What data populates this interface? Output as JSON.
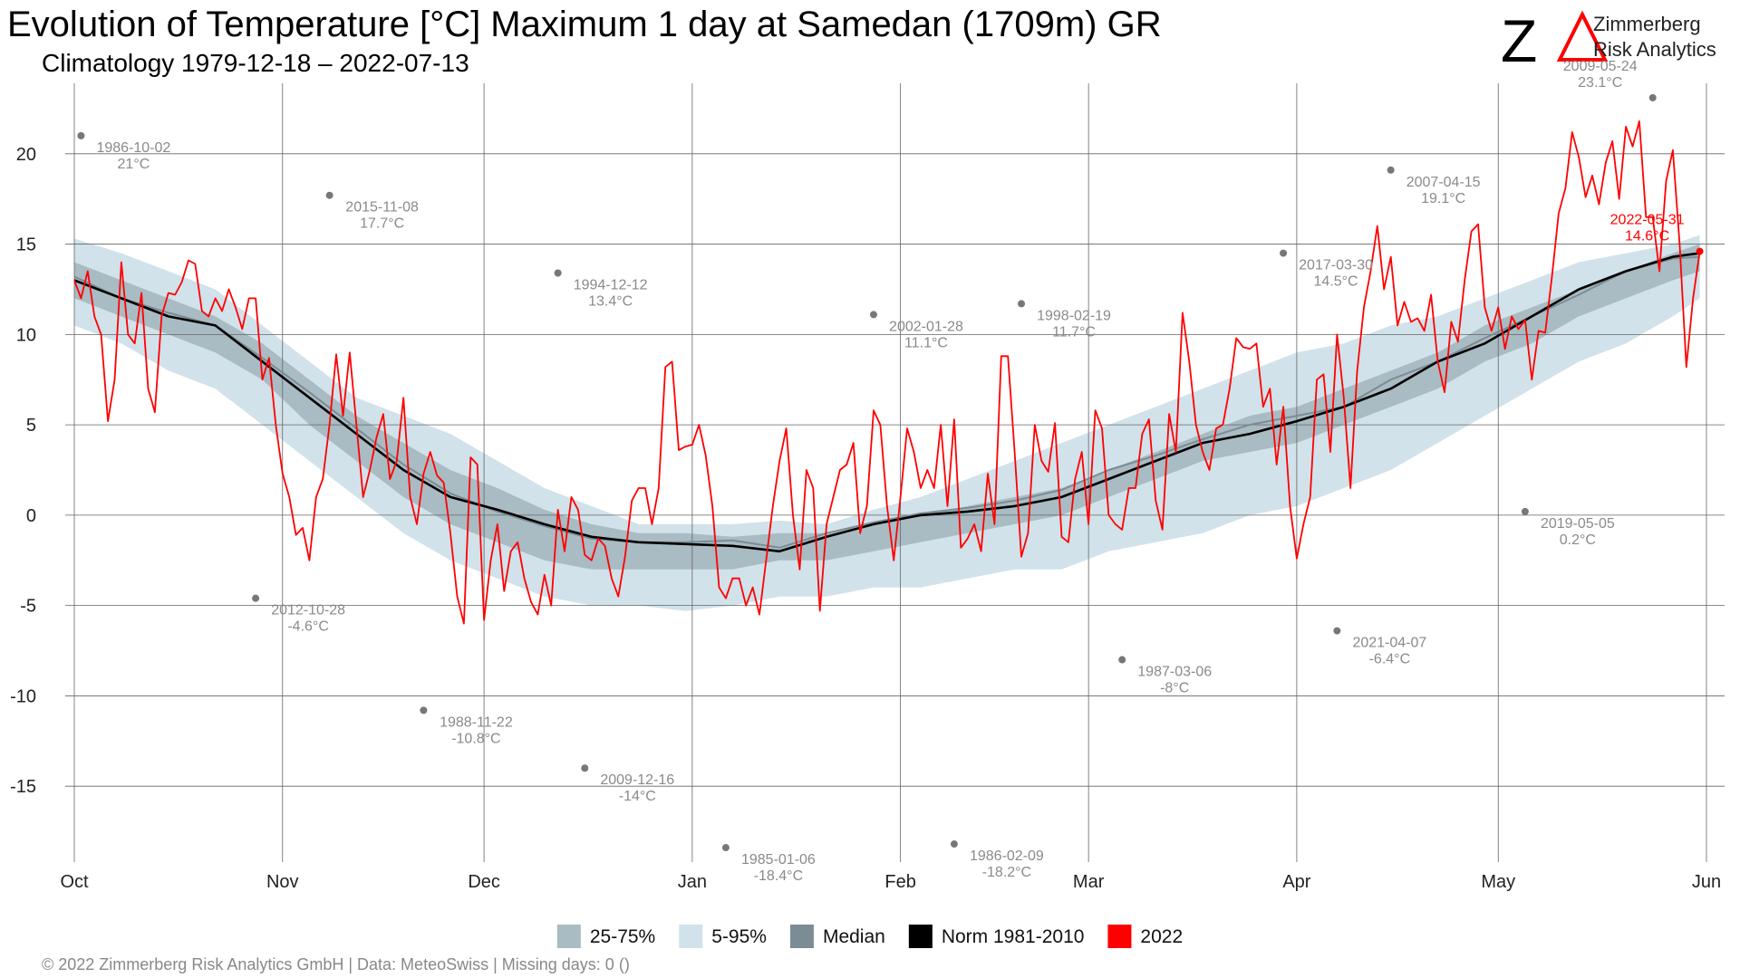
{
  "chart_data": {
    "type": "climatology",
    "title": "Evolution of Temperature [°C] Maximum 1 day at Samedan (1709m) GR",
    "subtitle": "Climatology 1979-12-18 – 2022-07-13",
    "logo": {
      "mark": "Z",
      "name": "Zimmerberg",
      "tagline": "Risk Analytics"
    },
    "footer": "©  2022 Zimmerberg Risk Analytics GmbH | Data: MeteoSwiss | Missing days: 0 ()",
    "xlim": [
      0,
      243
    ],
    "xticks": [
      {
        "value": 0,
        "label": "Oct"
      },
      {
        "value": 31,
        "label": "Nov"
      },
      {
        "value": 61,
        "label": "Dec"
      },
      {
        "value": 92,
        "label": "Jan"
      },
      {
        "value": 123,
        "label": "Feb"
      },
      {
        "value": 151,
        "label": "Mar"
      },
      {
        "value": 182,
        "label": "Apr"
      },
      {
        "value": 212,
        "label": "May"
      },
      {
        "value": 243,
        "label": "Jun"
      }
    ],
    "ylim": [
      -19.2,
      23.9
    ],
    "yticks": [
      -15,
      -10,
      -5,
      0,
      5,
      10,
      15,
      20
    ],
    "grid": true,
    "bands": [
      {
        "name": "25-75%",
        "color": "#a9bbc3",
        "x": [
          0,
          7,
          14,
          21,
          28,
          35,
          42,
          49,
          56,
          63,
          70,
          77,
          84,
          91,
          98,
          105,
          112,
          119,
          126,
          133,
          140,
          147,
          154,
          161,
          168,
          175,
          182,
          189,
          196,
          203,
          210,
          217,
          224,
          231,
          238,
          242
        ],
        "low": [
          12,
          11,
          10,
          9,
          7.5,
          5,
          3,
          1,
          -0.5,
          -1.5,
          -2.5,
          -3,
          -3,
          -3,
          -3,
          -2.5,
          -2.5,
          -2,
          -1.5,
          -1,
          -0.5,
          0,
          1,
          2,
          3,
          3.5,
          4,
          5,
          6,
          7,
          8.5,
          9.5,
          11,
          12,
          13,
          13.5
        ],
        "high": [
          14,
          13,
          12,
          11,
          9.5,
          7.5,
          5.5,
          4,
          2.5,
          1.5,
          0.3,
          -0.5,
          -1,
          -1,
          -1.2,
          -1,
          -1,
          -0.5,
          0,
          0.5,
          1,
          1.5,
          2.5,
          3.5,
          4.5,
          5.5,
          6,
          7,
          8,
          9,
          10.5,
          11.5,
          12.5,
          13.5,
          14.5,
          15
        ]
      },
      {
        "name": "5-95%",
        "color": "#d1e2ea",
        "x": [
          0,
          7,
          14,
          21,
          28,
          35,
          42,
          49,
          56,
          63,
          70,
          77,
          84,
          91,
          98,
          105,
          112,
          119,
          126,
          133,
          140,
          147,
          154,
          161,
          168,
          175,
          182,
          189,
          196,
          203,
          210,
          217,
          224,
          231,
          238,
          242
        ],
        "low": [
          10.5,
          9.5,
          8,
          7,
          5,
          3,
          1,
          -1,
          -2.5,
          -3.5,
          -4.5,
          -5,
          -5,
          -5.3,
          -5,
          -4.5,
          -4.5,
          -4,
          -4,
          -3.5,
          -3,
          -3,
          -2,
          -1.5,
          -1,
          0,
          0.5,
          1.5,
          2.5,
          4,
          5.5,
          7,
          8.5,
          9.5,
          11,
          12
        ],
        "high": [
          15.3,
          14.5,
          13.5,
          12.5,
          10.5,
          8.5,
          6.5,
          5.5,
          4.5,
          3,
          1.5,
          0.5,
          -0.5,
          -0.5,
          -0.5,
          -0.3,
          -0.5,
          0.3,
          1,
          2,
          3,
          4,
          5,
          6,
          7,
          8,
          9,
          9.5,
          10.5,
          11,
          12,
          13,
          14,
          14.5,
          15,
          15.5
        ]
      }
    ],
    "series": [
      {
        "name": "Median",
        "color": "#7c8c94",
        "x": [
          0,
          7,
          14,
          21,
          28,
          35,
          42,
          49,
          56,
          63,
          70,
          77,
          84,
          91,
          98,
          105,
          112,
          119,
          126,
          133,
          140,
          147,
          154,
          161,
          168,
          175,
          182,
          189,
          196,
          203,
          210,
          217,
          224,
          231,
          238,
          242
        ],
        "values": [
          13.2,
          12,
          11.2,
          10.5,
          8.7,
          6.8,
          4.8,
          2.8,
          1.2,
          0.2,
          -0.6,
          -1.3,
          -1.5,
          -1.5,
          -1.4,
          -1.8,
          -1,
          -0.4,
          0.1,
          0.4,
          0.8,
          1.4,
          2.5,
          3.3,
          4.2,
          5,
          5.5,
          6,
          7.5,
          8.5,
          9.8,
          11,
          12.2,
          13.5,
          14.2,
          14.3
        ]
      },
      {
        "name": "Norm 1981-2010",
        "color": "#000000",
        "x": [
          0,
          7,
          14,
          21,
          28,
          35,
          42,
          49,
          56,
          63,
          70,
          77,
          84,
          91,
          98,
          105,
          112,
          119,
          126,
          133,
          140,
          147,
          154,
          161,
          168,
          175,
          182,
          189,
          196,
          203,
          210,
          217,
          224,
          231,
          238,
          242
        ],
        "values": [
          13,
          12,
          11,
          10.5,
          8.5,
          6.5,
          4.5,
          2.5,
          1,
          0.3,
          -0.5,
          -1.2,
          -1.5,
          -1.6,
          -1.7,
          -2,
          -1.2,
          -0.5,
          0,
          0.2,
          0.5,
          1,
          2,
          3,
          4,
          4.5,
          5.2,
          6,
          7,
          8.5,
          9.5,
          11,
          12.5,
          13.5,
          14.3,
          14.5
        ]
      },
      {
        "name": "2022",
        "color": "#ff0000",
        "values": [
          13,
          12,
          13.5,
          11,
          10,
          5.2,
          7.5,
          14,
          10,
          9.5,
          12.3,
          7,
          5.7,
          11,
          12.3,
          12.2,
          12.9,
          14.1,
          13.9,
          11.3,
          11,
          12,
          11.3,
          12.5,
          11.5,
          10.3,
          12,
          12,
          7.5,
          8.7,
          5,
          2.3,
          1,
          -1.1,
          -0.7,
          -2.5,
          1,
          2,
          5,
          8.9,
          5.5,
          9,
          5,
          1,
          2.5,
          4.3,
          5.6,
          2,
          3,
          6.5,
          1,
          -0.5,
          2.3,
          3.5,
          2.2,
          1.8,
          -1,
          -4.5,
          -6,
          3.2,
          2.8,
          -5.8,
          -2.5,
          -0.5,
          -4.2,
          -2,
          -1.5,
          -3.5,
          -4.8,
          -5.5,
          -3.3,
          -5,
          0.3,
          -2,
          1,
          0.3,
          -2.2,
          -2.5,
          -1.3,
          -1.7,
          -3.5,
          -4.5,
          -2.3,
          0.8,
          1.5,
          1.5,
          -0.5,
          1.5,
          8.2,
          8.5,
          3.6,
          3.8,
          3.9,
          5,
          3.3,
          0.5,
          -4,
          -4.6,
          -3.5,
          -3.5,
          -5,
          -4,
          -5.5,
          -2.5,
          0.5,
          3,
          4.8,
          0,
          -3,
          2.5,
          1.5,
          -5.3,
          -0.5,
          1,
          2.5,
          2.8,
          4,
          -1,
          0.5,
          5.8,
          5,
          0.5,
          -2.5,
          1,
          4.8,
          3.5,
          1.5,
          2.5,
          1.5,
          5,
          0.5,
          5.3,
          -1.8,
          -1.3,
          -0.5,
          -2,
          2.3,
          -0.5,
          8.8,
          8.8,
          3.5,
          -2.3,
          -1,
          5,
          3,
          2.4,
          5.1,
          -1.2,
          -1.5,
          2,
          3.5,
          -0.5,
          5.8,
          4.8,
          0,
          -0.5,
          -0.8,
          1.5,
          1.5,
          4.5,
          5.3,
          0.8,
          -0.8,
          5.6,
          3.5,
          11.2,
          8.5,
          5,
          3.5,
          2.5,
          4.8,
          5,
          7,
          9.8,
          9.3,
          9.2,
          9.5,
          6,
          7,
          2.8,
          6,
          0.5,
          -2.4,
          -0.5,
          1,
          7.5,
          7.8,
          3.5,
          10,
          6.5,
          1.5,
          8,
          11.5,
          13.5,
          16,
          12.5,
          14.3,
          10.5,
          11.8,
          10.7,
          10.9,
          10.2,
          12.2,
          8.5,
          6.8,
          10.7,
          9.6,
          13,
          15.7,
          16.1,
          11.5,
          10.2,
          11.5,
          9.2,
          11,
          10.3,
          10.8,
          7.5,
          10.2,
          10.1,
          13.2,
          16.7,
          18.1,
          21.2,
          19.8,
          17.6,
          18.8,
          17.2,
          19.5,
          20.7,
          17.5,
          21.5,
          20.4,
          21.8,
          16.5,
          16.5,
          13.5,
          18.5,
          20.2,
          15,
          8.2,
          12,
          14.6
        ]
      }
    ],
    "annotations": [
      {
        "date": "1986-10-02",
        "x": 1,
        "value": 21,
        "value_label": "21°C",
        "color": "#777777"
      },
      {
        "date": "2015-11-08",
        "x": 38,
        "value": 17.7,
        "value_label": "17.7°C",
        "color": "#777777"
      },
      {
        "date": "2012-10-28",
        "x": 27,
        "value": -4.6,
        "value_label": "-4.6°C",
        "color": "#777777"
      },
      {
        "date": "1988-11-22",
        "x": 52,
        "value": -10.8,
        "value_label": "-10.8°C",
        "color": "#777777"
      },
      {
        "date": "1994-12-12",
        "x": 72,
        "value": 13.4,
        "value_label": "13.4°C",
        "color": "#777777"
      },
      {
        "date": "2009-12-16",
        "x": 76,
        "value": -14,
        "value_label": "-14°C",
        "color": "#777777"
      },
      {
        "date": "1985-01-06",
        "x": 97,
        "value": -18.4,
        "value_label": "-18.4°C",
        "color": "#777777"
      },
      {
        "date": "2002-01-28",
        "x": 119,
        "value": 11.1,
        "value_label": "11.1°C",
        "color": "#777777"
      },
      {
        "date": "1986-02-09",
        "x": 131,
        "value": -18.2,
        "value_label": "-18.2°C",
        "color": "#777777"
      },
      {
        "date": "1998-02-19",
        "x": 141,
        "value": 11.7,
        "value_label": "11.7°C",
        "color": "#777777"
      },
      {
        "date": "1987-03-06",
        "x": 156,
        "value": -8,
        "value_label": "-8°C",
        "color": "#777777"
      },
      {
        "date": "2017-03-30",
        "x": 180,
        "value": 14.5,
        "value_label": "14.5°C",
        "color": "#777777"
      },
      {
        "date": "2021-04-07",
        "x": 188,
        "value": -6.4,
        "value_label": "-6.4°C",
        "color": "#777777"
      },
      {
        "date": "2007-04-15",
        "x": 196,
        "value": 19.1,
        "value_label": "19.1°C",
        "color": "#777777"
      },
      {
        "date": "2019-05-05",
        "x": 216,
        "value": 0.2,
        "value_label": "0.2°C",
        "color": "#777777"
      },
      {
        "date": "2009-05-24",
        "x": 235,
        "value": 23.1,
        "value_label": "23.1°C",
        "color": "#777777"
      },
      {
        "date": "2022-05-31",
        "x": 242,
        "value": 14.6,
        "value_label": "14.6°C",
        "color": "#ff0000"
      }
    ]
  }
}
